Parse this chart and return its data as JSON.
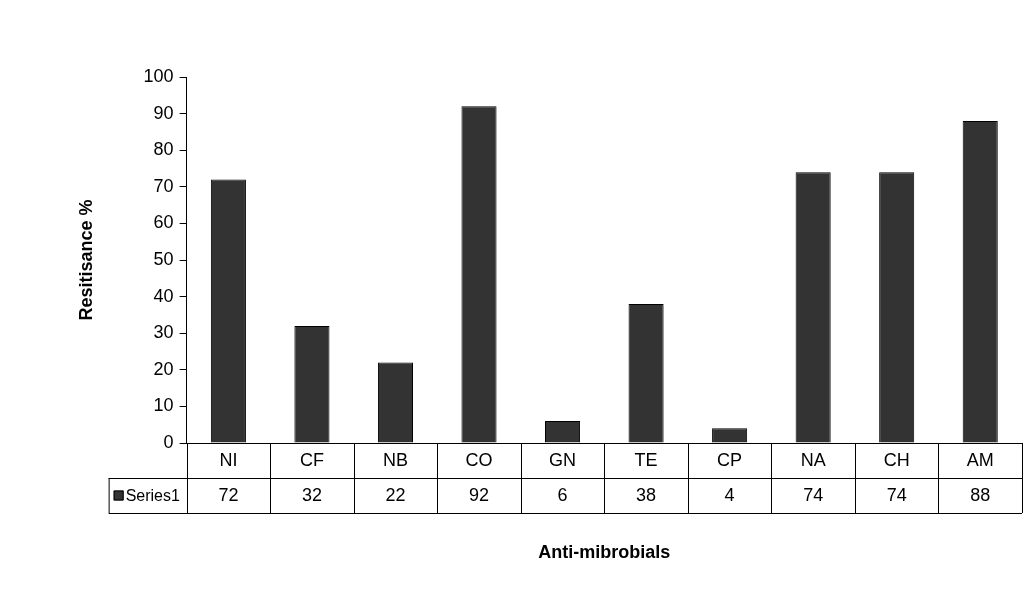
{
  "chart_data": {
    "type": "bar",
    "xlabel": "Anti-mibrobials",
    "ylabel": "Resitisance %",
    "categories": [
      "NI",
      "CF",
      "NB",
      "CO",
      "GN",
      "TE",
      "CP",
      "NA",
      "CH",
      "AM"
    ],
    "series": [
      {
        "name": "Series1",
        "color": "#333333",
        "values": [
          72,
          32,
          22,
          92,
          6,
          38,
          4,
          74,
          74,
          88
        ]
      }
    ],
    "ylim": [
      0,
      100
    ],
    "yticks": [
      0,
      10,
      20,
      30,
      40,
      50,
      60,
      70,
      80,
      90,
      100
    ],
    "grid": false,
    "legend": "bottom",
    "data_labels": true
  }
}
